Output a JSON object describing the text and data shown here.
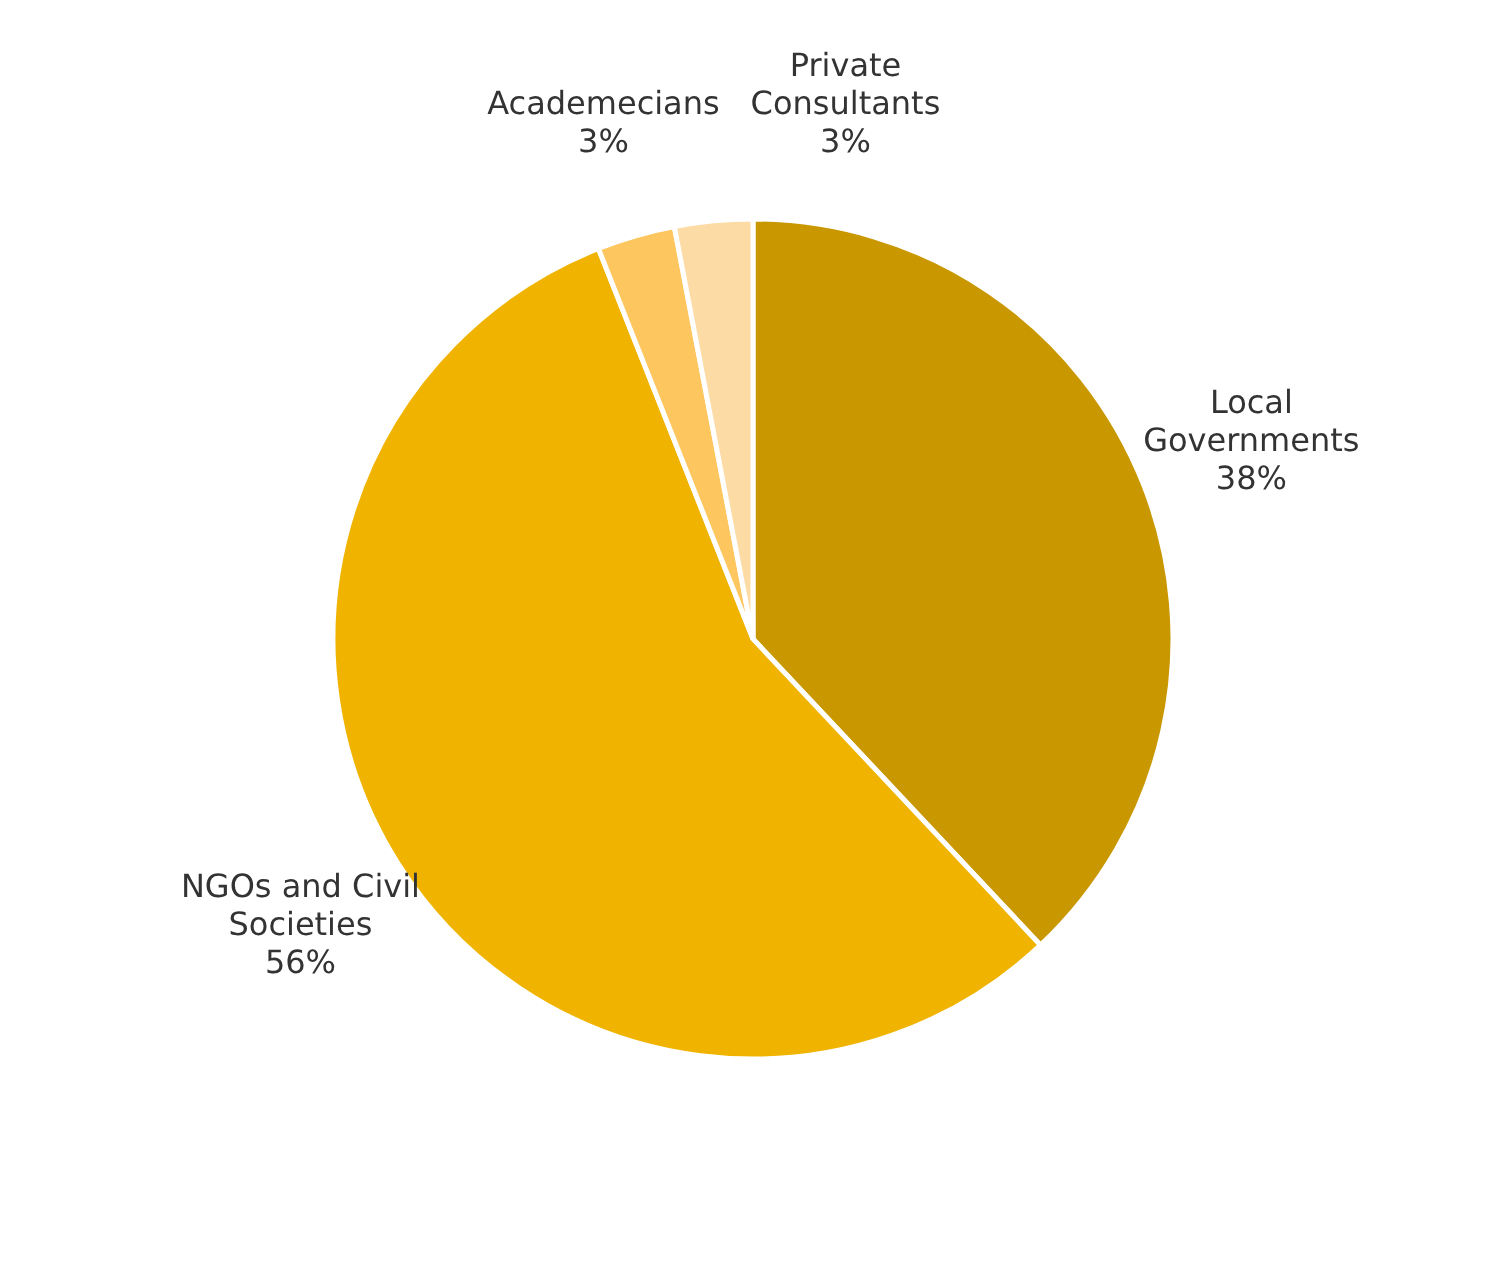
{
  "chart_data": {
    "type": "pie",
    "categories": [
      "Local Governments",
      "NGOs and Civil Societies",
      "Academecians",
      "Private Consultants"
    ],
    "values": [
      38,
      56,
      3,
      3
    ],
    "value_labels": [
      "38%",
      "56%",
      "3%",
      "3%"
    ],
    "colors": [
      "#c99700",
      "#f0b400",
      "#fdc65e",
      "#fddba5"
    ]
  }
}
